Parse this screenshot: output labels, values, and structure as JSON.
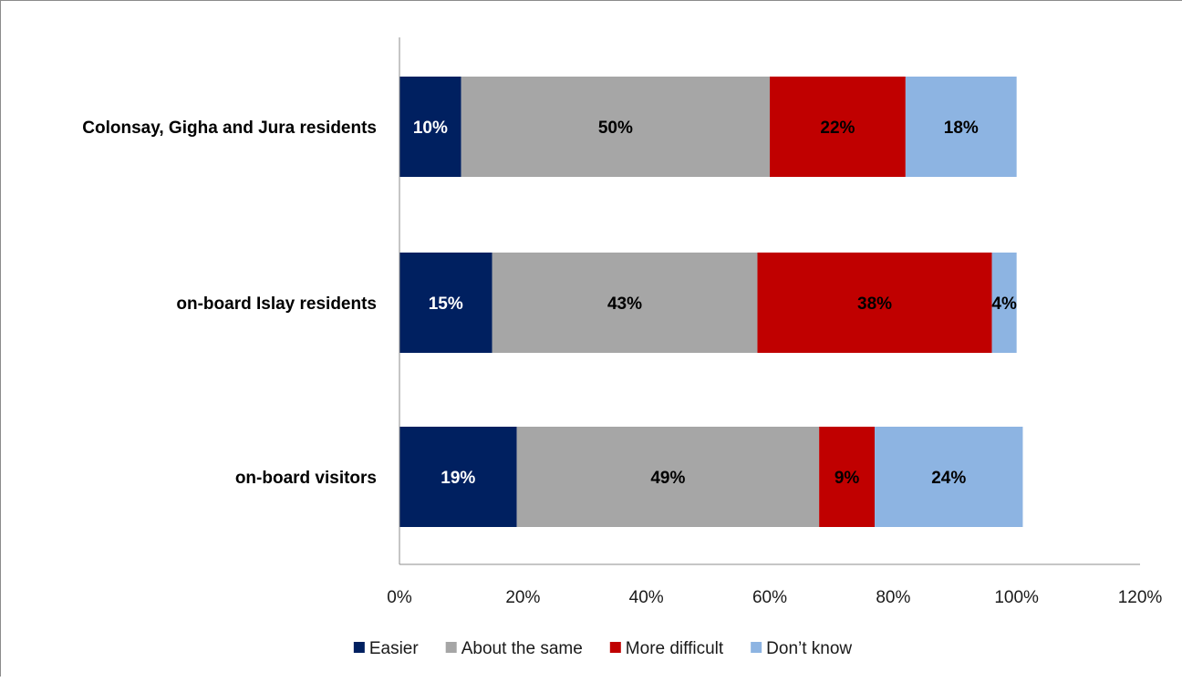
{
  "chart_data": {
    "type": "bar",
    "orientation": "horizontal",
    "stacked": true,
    "title": "",
    "xlabel": "",
    "ylabel": "",
    "categories": [
      "Colonsay, Gigha and Jura residents",
      "on-board Islay residents",
      "on-board visitors"
    ],
    "series": [
      {
        "name": "Easier",
        "color": "#002060",
        "label_color": "#ffffff",
        "values": [
          10,
          15,
          19
        ],
        "labels": [
          "10%",
          "15%",
          "19%"
        ]
      },
      {
        "name": "About the same",
        "color": "#a6a6a6",
        "label_color": "#000000",
        "values": [
          50,
          43,
          49
        ],
        "labels": [
          "50%",
          "43%",
          "49%"
        ]
      },
      {
        "name": "More difficult",
        "color": "#c00000",
        "label_color": "#000000",
        "values": [
          22,
          38,
          9
        ],
        "labels": [
          "22%",
          "38%",
          "9%"
        ]
      },
      {
        "name": "Don’t know",
        "color": "#8db4e2",
        "label_color": "#000000",
        "values": [
          18,
          4,
          24
        ],
        "labels": [
          "18%",
          "4%",
          "24%"
        ]
      }
    ],
    "xlim": [
      0,
      120
    ],
    "x_ticks": [
      0,
      20,
      40,
      60,
      80,
      100,
      120
    ],
    "x_tick_labels": [
      "0%",
      "20%",
      "40%",
      "60%",
      "80%",
      "100%",
      "120%"
    ],
    "grid": false,
    "legend_position": "bottom"
  }
}
